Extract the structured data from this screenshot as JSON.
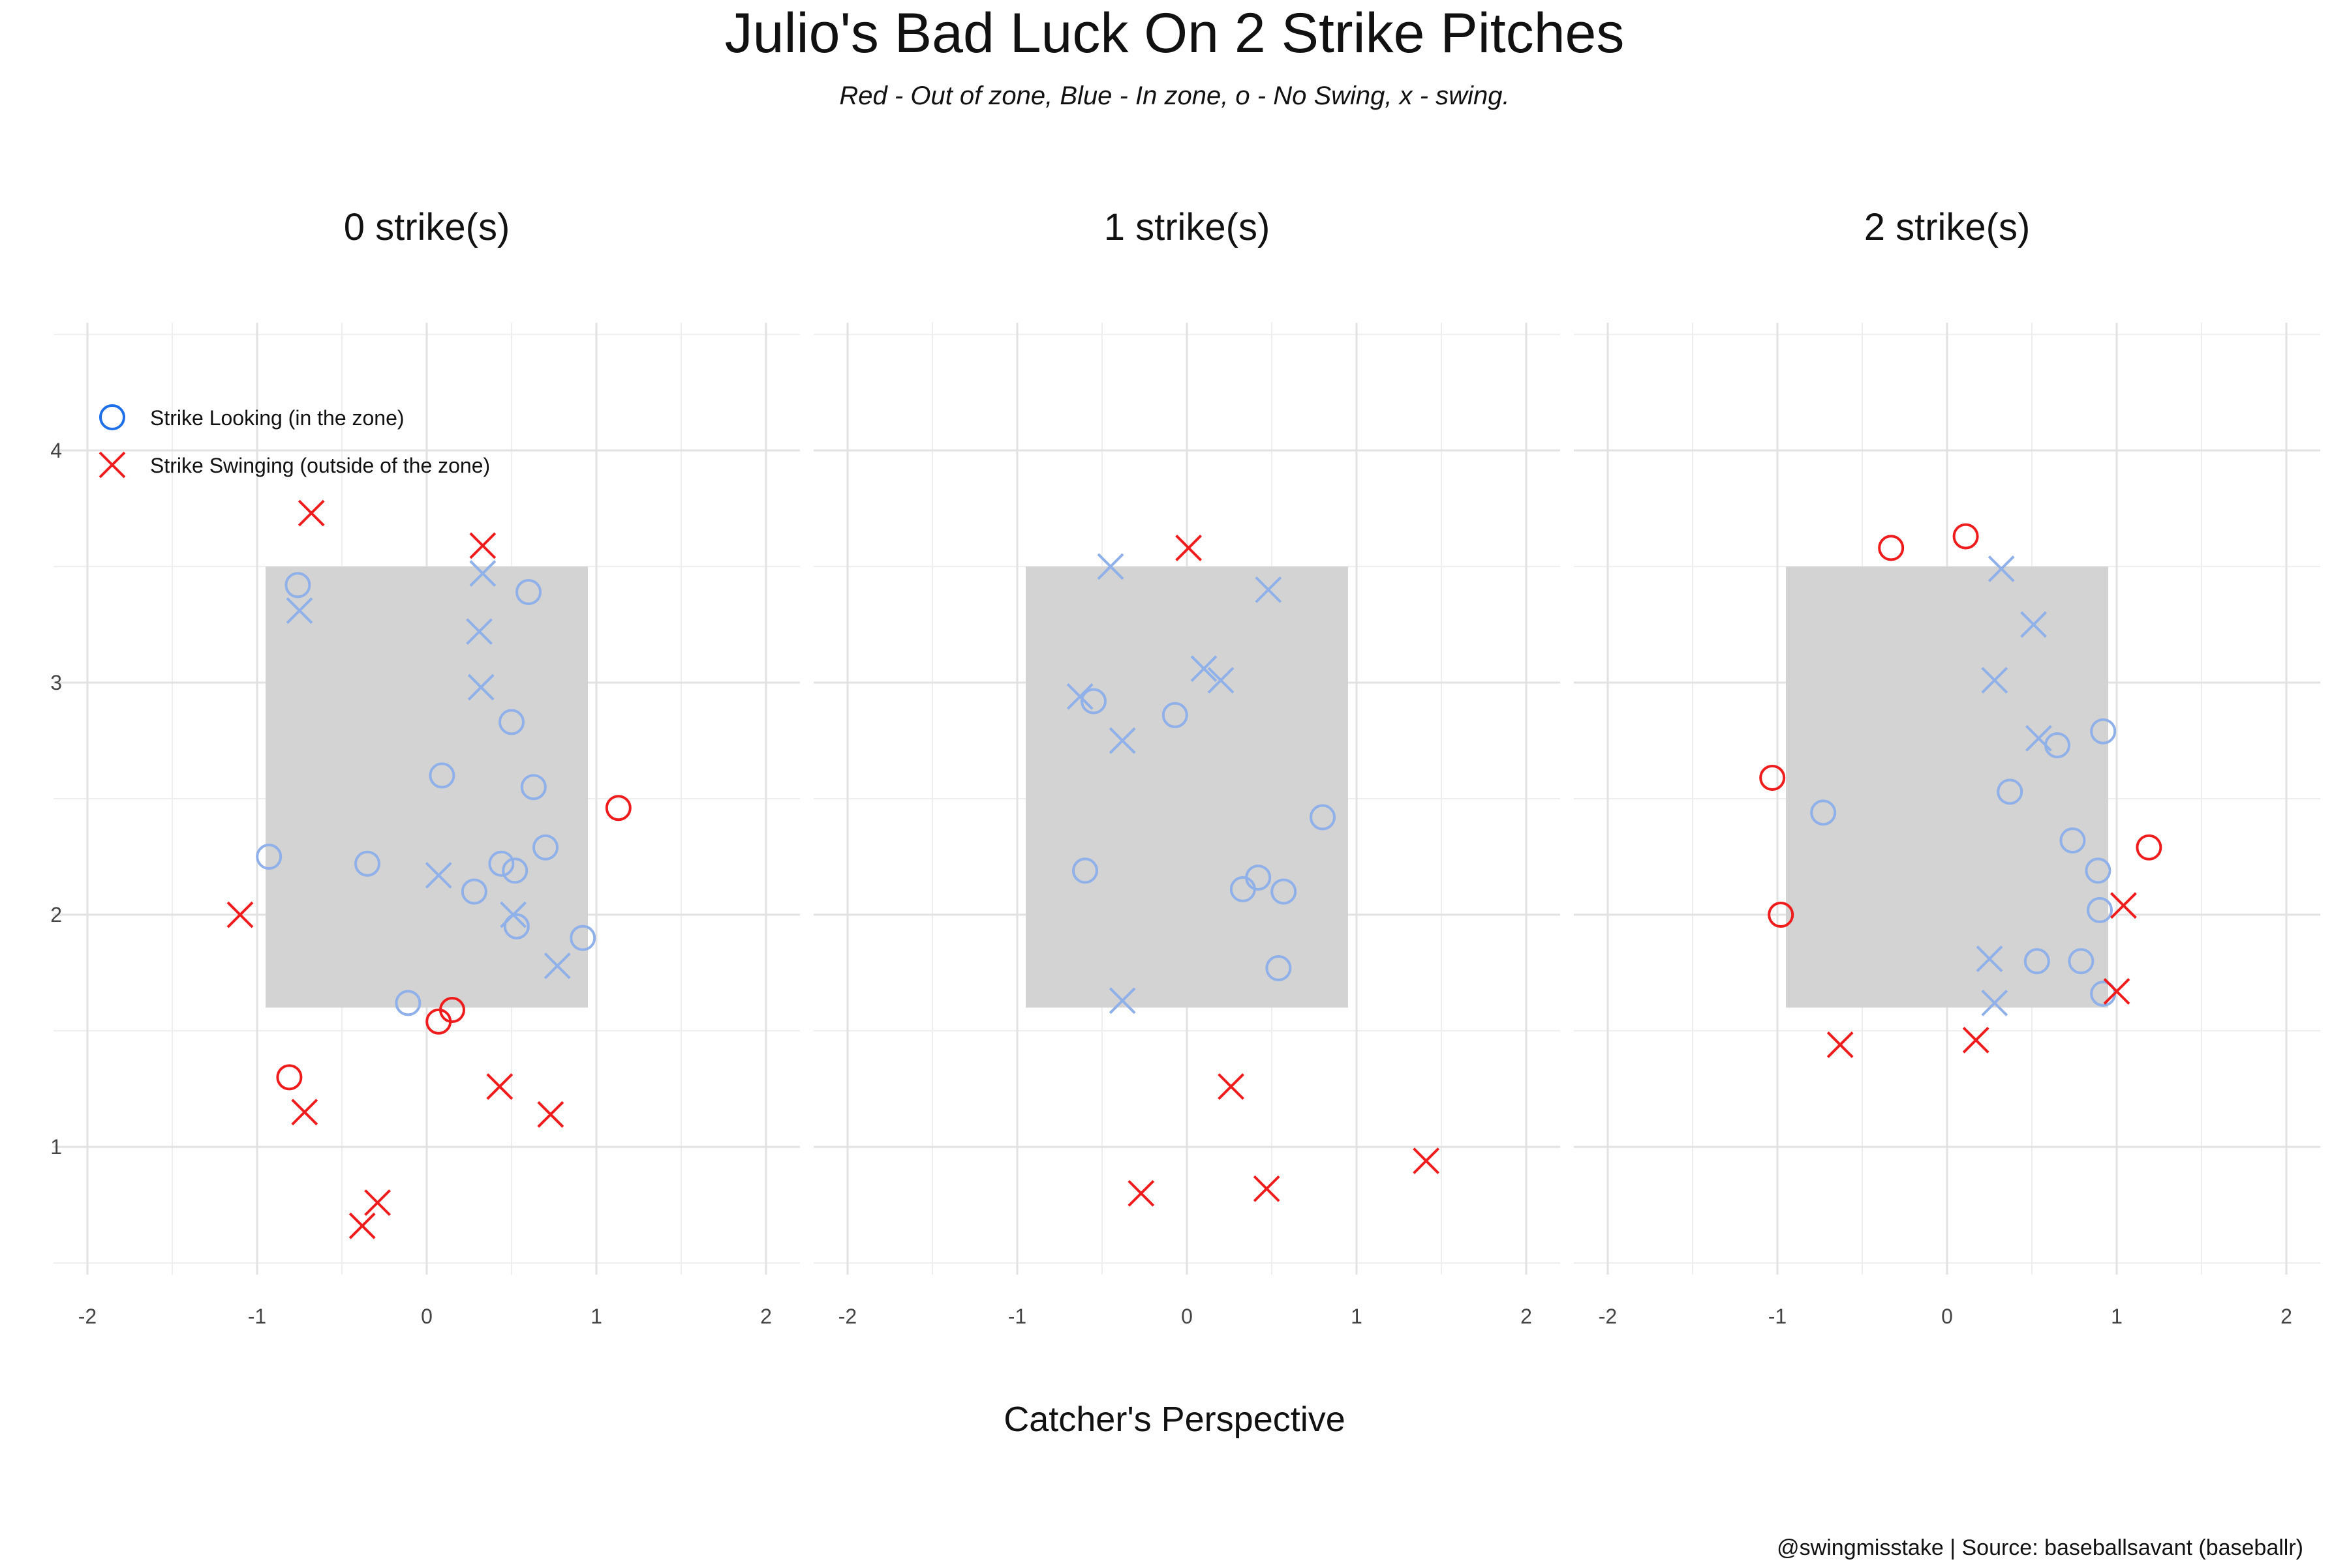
{
  "chart_data": {
    "type": "scatter",
    "title": "Julio's Bad Luck On 2 Strike Pitches",
    "subtitle": "Red - Out of zone, Blue - In zone, o - No Swing, x - swing.",
    "xlabel": "Catcher's Perspective",
    "ylabel": "",
    "caption": "@swingmisstake | Source: baseballsavant (baseballr)",
    "xlim": [
      -2.2,
      2.2
    ],
    "ylim": [
      0.45,
      4.55
    ],
    "x_ticks": [
      "-2",
      "-1",
      "0",
      "1",
      "2"
    ],
    "y_ticks": [
      "1",
      "2",
      "3",
      "4"
    ],
    "grid": true,
    "strike_zone": {
      "x": [
        -0.95,
        0.95
      ],
      "y": [
        1.6,
        3.5
      ],
      "color": "#d3d3d3"
    },
    "colors": {
      "in_zone": "#8fb0e8",
      "out_zone": "#ee1c1c",
      "legend_blue": "#1f6fe8"
    },
    "legend": {
      "position": "top-left",
      "entries": [
        {
          "label": "Strike Looking (in the zone)",
          "marker": "circle"
        },
        {
          "label": "Strike Swinging (outside of the zone)",
          "marker": "x"
        }
      ]
    },
    "panels": [
      {
        "title": "0 strike(s)",
        "points": [
          {
            "x": -0.76,
            "y": 3.42,
            "zone": "in",
            "swing": false
          },
          {
            "x": -0.75,
            "y": 3.31,
            "zone": "in",
            "swing": true
          },
          {
            "x": 0.33,
            "y": 3.47,
            "zone": "in",
            "swing": true
          },
          {
            "x": 0.6,
            "y": 3.39,
            "zone": "in",
            "swing": false
          },
          {
            "x": 0.31,
            "y": 3.22,
            "zone": "in",
            "swing": true
          },
          {
            "x": 0.32,
            "y": 2.98,
            "zone": "in",
            "swing": true
          },
          {
            "x": 0.5,
            "y": 2.83,
            "zone": "in",
            "swing": false
          },
          {
            "x": 0.09,
            "y": 2.6,
            "zone": "in",
            "swing": false
          },
          {
            "x": 0.63,
            "y": 2.55,
            "zone": "in",
            "swing": false
          },
          {
            "x": 0.7,
            "y": 2.29,
            "zone": "in",
            "swing": false
          },
          {
            "x": -0.93,
            "y": 2.25,
            "zone": "in",
            "swing": false
          },
          {
            "x": -0.35,
            "y": 2.22,
            "zone": "in",
            "swing": false
          },
          {
            "x": 0.44,
            "y": 2.22,
            "zone": "in",
            "swing": false
          },
          {
            "x": 0.52,
            "y": 2.19,
            "zone": "in",
            "swing": false
          },
          {
            "x": 0.07,
            "y": 2.17,
            "zone": "in",
            "swing": true
          },
          {
            "x": 0.28,
            "y": 2.1,
            "zone": "in",
            "swing": false
          },
          {
            "x": 0.51,
            "y": 2.0,
            "zone": "in",
            "swing": true
          },
          {
            "x": 0.53,
            "y": 1.95,
            "zone": "in",
            "swing": false
          },
          {
            "x": 0.92,
            "y": 1.9,
            "zone": "in",
            "swing": false
          },
          {
            "x": 0.77,
            "y": 1.78,
            "zone": "in",
            "swing": true
          },
          {
            "x": -0.11,
            "y": 1.62,
            "zone": "in",
            "swing": false
          },
          {
            "x": -0.68,
            "y": 3.73,
            "zone": "out",
            "swing": true
          },
          {
            "x": 0.33,
            "y": 3.59,
            "zone": "out",
            "swing": true
          },
          {
            "x": 1.13,
            "y": 2.46,
            "zone": "out",
            "swing": false
          },
          {
            "x": -1.1,
            "y": 2.0,
            "zone": "out",
            "swing": true
          },
          {
            "x": 0.15,
            "y": 1.59,
            "zone": "out",
            "swing": false
          },
          {
            "x": 0.07,
            "y": 1.54,
            "zone": "out",
            "swing": false
          },
          {
            "x": -0.81,
            "y": 1.3,
            "zone": "out",
            "swing": false
          },
          {
            "x": 0.43,
            "y": 1.26,
            "zone": "out",
            "swing": true
          },
          {
            "x": -0.72,
            "y": 1.15,
            "zone": "out",
            "swing": true
          },
          {
            "x": 0.73,
            "y": 1.14,
            "zone": "out",
            "swing": true
          },
          {
            "x": -0.29,
            "y": 0.76,
            "zone": "out",
            "swing": true
          },
          {
            "x": -0.38,
            "y": 0.66,
            "zone": "out",
            "swing": true
          }
        ]
      },
      {
        "title": "1 strike(s)",
        "points": [
          {
            "x": -0.45,
            "y": 3.5,
            "zone": "in",
            "swing": true
          },
          {
            "x": 0.48,
            "y": 3.4,
            "zone": "in",
            "swing": true
          },
          {
            "x": 0.1,
            "y": 3.06,
            "zone": "in",
            "swing": true
          },
          {
            "x": 0.2,
            "y": 3.01,
            "zone": "in",
            "swing": true
          },
          {
            "x": -0.63,
            "y": 2.94,
            "zone": "in",
            "swing": true
          },
          {
            "x": -0.55,
            "y": 2.92,
            "zone": "in",
            "swing": false
          },
          {
            "x": -0.07,
            "y": 2.86,
            "zone": "in",
            "swing": false
          },
          {
            "x": -0.38,
            "y": 2.75,
            "zone": "in",
            "swing": true
          },
          {
            "x": 0.8,
            "y": 2.42,
            "zone": "in",
            "swing": false
          },
          {
            "x": -0.6,
            "y": 2.19,
            "zone": "in",
            "swing": false
          },
          {
            "x": 0.42,
            "y": 2.16,
            "zone": "in",
            "swing": false
          },
          {
            "x": 0.33,
            "y": 2.11,
            "zone": "in",
            "swing": false
          },
          {
            "x": 0.57,
            "y": 2.1,
            "zone": "in",
            "swing": false
          },
          {
            "x": 0.54,
            "y": 1.77,
            "zone": "in",
            "swing": false
          },
          {
            "x": -0.38,
            "y": 1.63,
            "zone": "in",
            "swing": true
          },
          {
            "x": 0.01,
            "y": 3.58,
            "zone": "out",
            "swing": true
          },
          {
            "x": 0.26,
            "y": 1.26,
            "zone": "out",
            "swing": true
          },
          {
            "x": 1.41,
            "y": 0.94,
            "zone": "out",
            "swing": true
          },
          {
            "x": 0.47,
            "y": 0.82,
            "zone": "out",
            "swing": true
          },
          {
            "x": -0.27,
            "y": 0.8,
            "zone": "out",
            "swing": true
          }
        ]
      },
      {
        "title": "2 strike(s)",
        "points": [
          {
            "x": 0.32,
            "y": 3.49,
            "zone": "in",
            "swing": true
          },
          {
            "x": 0.51,
            "y": 3.25,
            "zone": "in",
            "swing": true
          },
          {
            "x": 0.28,
            "y": 3.01,
            "zone": "in",
            "swing": true
          },
          {
            "x": 0.92,
            "y": 2.79,
            "zone": "in",
            "swing": false
          },
          {
            "x": 0.54,
            "y": 2.76,
            "zone": "in",
            "swing": true
          },
          {
            "x": 0.65,
            "y": 2.73,
            "zone": "in",
            "swing": false
          },
          {
            "x": 0.37,
            "y": 2.53,
            "zone": "in",
            "swing": false
          },
          {
            "x": -0.73,
            "y": 2.44,
            "zone": "in",
            "swing": false
          },
          {
            "x": 0.74,
            "y": 2.32,
            "zone": "in",
            "swing": false
          },
          {
            "x": 0.89,
            "y": 2.19,
            "zone": "in",
            "swing": false
          },
          {
            "x": 0.9,
            "y": 2.02,
            "zone": "in",
            "swing": false
          },
          {
            "x": 0.25,
            "y": 1.81,
            "zone": "in",
            "swing": true
          },
          {
            "x": 0.53,
            "y": 1.8,
            "zone": "in",
            "swing": false
          },
          {
            "x": 0.79,
            "y": 1.8,
            "zone": "in",
            "swing": false
          },
          {
            "x": 0.92,
            "y": 1.66,
            "zone": "in",
            "swing": false
          },
          {
            "x": 0.28,
            "y": 1.62,
            "zone": "in",
            "swing": true
          },
          {
            "x": 0.11,
            "y": 3.63,
            "zone": "out",
            "swing": false
          },
          {
            "x": -0.33,
            "y": 3.58,
            "zone": "out",
            "swing": false
          },
          {
            "x": -1.03,
            "y": 2.59,
            "zone": "out",
            "swing": false
          },
          {
            "x": 1.19,
            "y": 2.29,
            "zone": "out",
            "swing": false
          },
          {
            "x": 1.04,
            "y": 2.04,
            "zone": "out",
            "swing": true
          },
          {
            "x": -0.98,
            "y": 2.0,
            "zone": "out",
            "swing": false
          },
          {
            "x": 1.0,
            "y": 1.67,
            "zone": "out",
            "swing": true
          },
          {
            "x": 0.17,
            "y": 1.46,
            "zone": "out",
            "swing": true
          },
          {
            "x": -0.63,
            "y": 1.44,
            "zone": "out",
            "swing": true
          }
        ]
      }
    ]
  }
}
